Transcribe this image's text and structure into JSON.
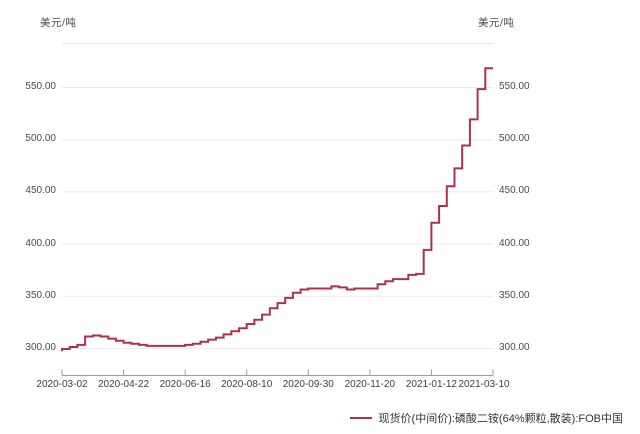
{
  "axes": {
    "unit_left": "美元/吨",
    "unit_right": "美元/吨"
  },
  "legend": {
    "label": "现货价(中间价):磷酸二铵(64%颗粒,散装):FOB中国",
    "marker_color": "#a8334a"
  },
  "chart_data": {
    "type": "line",
    "title": "",
    "ylabel_left": "美元/吨",
    "ylabel_right": "美元/吨",
    "interpolation": "step-before",
    "grid": true,
    "legend_position": "bottom-right",
    "x_tick_labels": [
      "2020-03-02",
      "2020-04-22",
      "2020-06-16",
      "2020-08-10",
      "2020-09-30",
      "2020-11-20",
      "2021-01-12",
      "2021-03-10"
    ],
    "x_range": [
      "2020-03-02",
      "2021-03-10"
    ],
    "y_tick_labels": [
      "300.00",
      "350.00",
      "400.00",
      "450.00",
      "500.00",
      "550.00"
    ],
    "y_tick_values": [
      300,
      350,
      400,
      450,
      500,
      550
    ],
    "ylim": [
      272,
      592
    ],
    "series": [
      {
        "name": "现货价(中间价):磷酸二铵(64%颗粒,散装):FOB中国",
        "color": "#a8334a",
        "values": [
          297,
          299,
          301,
          303,
          311,
          312,
          311,
          309,
          307,
          305,
          304,
          303,
          302,
          302,
          302,
          302,
          302,
          303,
          304,
          306,
          308,
          310,
          313,
          316,
          319,
          323,
          327,
          332,
          338,
          343,
          348,
          353,
          356,
          357,
          357,
          357,
          359,
          358,
          356,
          357,
          357,
          357,
          361,
          364,
          366,
          366,
          370,
          371,
          394,
          420,
          436,
          455,
          472,
          494,
          519,
          548,
          568
        ]
      }
    ],
    "colors": {
      "grid": "#ebebeb",
      "axis": "#87a3b2"
    }
  }
}
